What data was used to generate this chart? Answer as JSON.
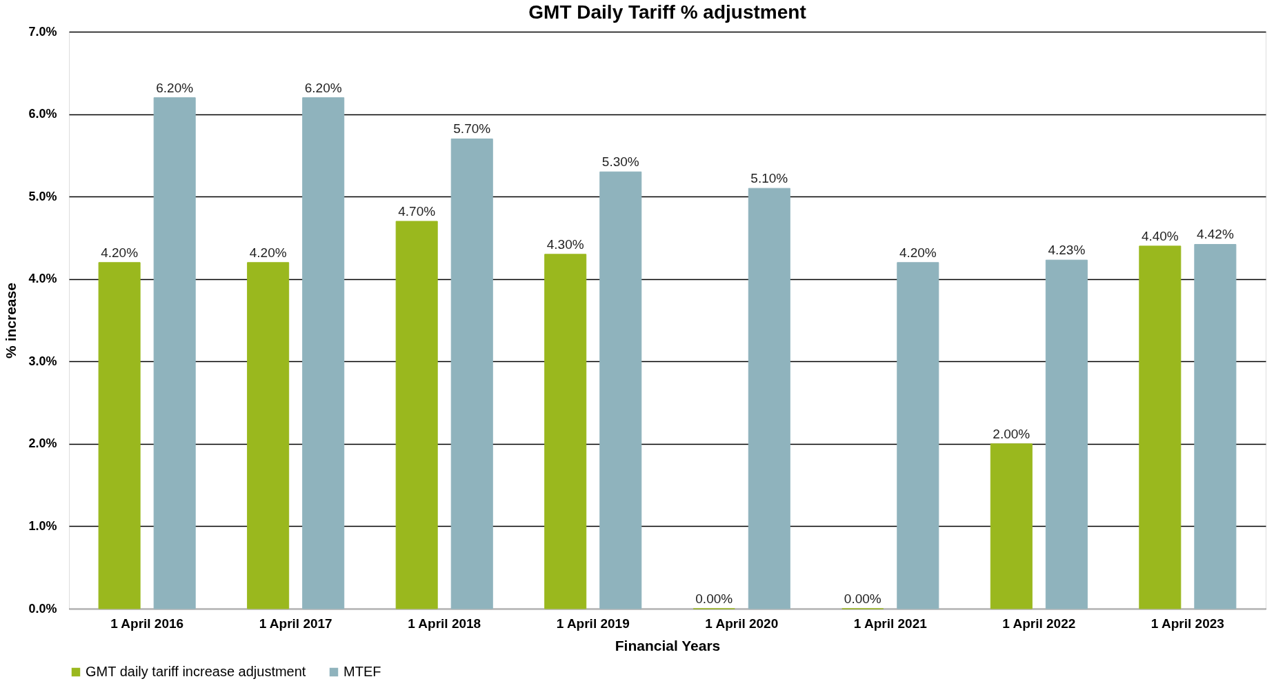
{
  "chart_data": {
    "type": "bar",
    "title": "GMT Daily Tariff % adjustment",
    "xlabel": "Financial Years",
    "ylabel": "% increase",
    "categories": [
      "1 April 2016",
      "1 April 2017",
      "1 April 2018",
      "1 April 2019",
      "1 April 2020",
      "1 April 2021",
      "1 April 2022",
      "1 April 2023"
    ],
    "series": [
      {
        "name": "GMT daily tariff increase adjustment",
        "color": "#9ab81e",
        "values": [
          4.2,
          4.2,
          4.7,
          4.3,
          0,
          0,
          2.0,
          4.4
        ],
        "value_labels": [
          "4.20%",
          "4.20%",
          "4.70%",
          "4.30%",
          "0.00%",
          "0.00%",
          "2.00%",
          "4.40%"
        ]
      },
      {
        "name": "MTEF",
        "color": "#8fb3bd",
        "values": [
          6.2,
          6.2,
          5.7,
          5.3,
          5.1,
          4.2,
          4.23,
          4.42
        ],
        "value_labels": [
          "6.20%",
          "6.20%",
          "5.70%",
          "5.30%",
          "5.10%",
          "4.20%",
          "4.23%",
          "4.42%"
        ]
      }
    ],
    "ylim": [
      0,
      7
    ],
    "yticks": [
      {
        "value": 0,
        "label": "0.0%"
      },
      {
        "value": 1,
        "label": "1.0%"
      },
      {
        "value": 2,
        "label": "2.0%"
      },
      {
        "value": 3,
        "label": "3.0%"
      },
      {
        "value": 4,
        "label": "4.0%"
      },
      {
        "value": 5,
        "label": "5.0%"
      },
      {
        "value": 6,
        "label": "6.0%"
      },
      {
        "value": 7,
        "label": "7.0%"
      }
    ],
    "grid": "y",
    "legend": "bottom"
  }
}
